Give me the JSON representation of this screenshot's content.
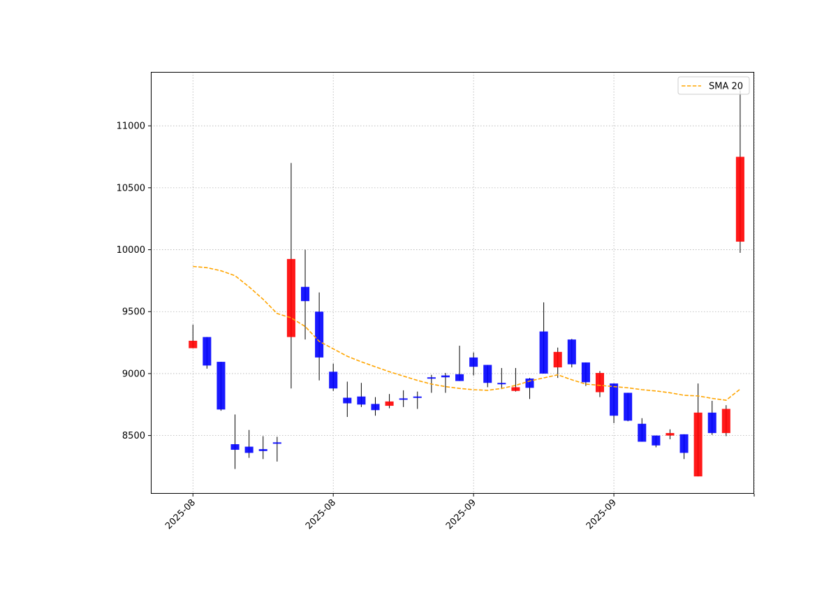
{
  "chart_data": {
    "type": "candlestick",
    "title": "",
    "xlabel": "",
    "ylabel": "",
    "ylim": [
      8030,
      11435
    ],
    "x_index_range": [
      -3,
      40
    ],
    "yticks": [
      8500,
      9000,
      9500,
      10000,
      10500,
      11000
    ],
    "xticks": [
      {
        "index": 0,
        "label": "2025-08"
      },
      {
        "index": 10,
        "label": "2025-08"
      },
      {
        "index": 20,
        "label": "2025-09"
      },
      {
        "index": 30,
        "label": "2025-09"
      },
      {
        "index": 40,
        "label": ""
      }
    ],
    "grid": true,
    "legend": {
      "position": "top-right",
      "entries": [
        {
          "name": "SMA 20",
          "color": "#FFA500",
          "style": "dashed"
        }
      ]
    },
    "colors": {
      "up": "#FF0000",
      "down": "#0000FF",
      "wick": "#000000",
      "sma": "#FFA500"
    },
    "candles": [
      {
        "i": 0,
        "open": 9205,
        "close": 9265,
        "high": 9395,
        "low": 9205
      },
      {
        "i": 1,
        "open": 9295,
        "close": 9065,
        "high": 9295,
        "low": 9040
      },
      {
        "i": 2,
        "open": 9095,
        "close": 8710,
        "high": 9095,
        "low": 8700
      },
      {
        "i": 3,
        "open": 8430,
        "close": 8385,
        "high": 8670,
        "low": 8230
      },
      {
        "i": 4,
        "open": 8410,
        "close": 8360,
        "high": 8545,
        "low": 8320
      },
      {
        "i": 5,
        "open": 8390,
        "close": 8375,
        "high": 8495,
        "low": 8310
      },
      {
        "i": 6,
        "open": 8445,
        "close": 8440,
        "high": 8490,
        "low": 8290
      },
      {
        "i": 7,
        "open": 9295,
        "close": 9925,
        "high": 10700,
        "low": 8880
      },
      {
        "i": 8,
        "open": 9700,
        "close": 9585,
        "high": 10000,
        "low": 9275
      },
      {
        "i": 9,
        "open": 9500,
        "close": 9130,
        "high": 9655,
        "low": 8945
      },
      {
        "i": 10,
        "open": 9015,
        "close": 8880,
        "high": 9080,
        "low": 8860
      },
      {
        "i": 11,
        "open": 8805,
        "close": 8760,
        "high": 8935,
        "low": 8650
      },
      {
        "i": 12,
        "open": 8815,
        "close": 8750,
        "high": 8925,
        "low": 8730
      },
      {
        "i": 13,
        "open": 8755,
        "close": 8705,
        "high": 8810,
        "low": 8660
      },
      {
        "i": 14,
        "open": 8740,
        "close": 8775,
        "high": 8835,
        "low": 8720
      },
      {
        "i": 15,
        "open": 8800,
        "close": 8790,
        "high": 8865,
        "low": 8730
      },
      {
        "i": 16,
        "open": 8815,
        "close": 8810,
        "high": 8855,
        "low": 8715
      },
      {
        "i": 17,
        "open": 8970,
        "close": 8960,
        "high": 8990,
        "low": 8845
      },
      {
        "i": 18,
        "open": 8985,
        "close": 8970,
        "high": 9005,
        "low": 8845
      },
      {
        "i": 19,
        "open": 8995,
        "close": 8940,
        "high": 9225,
        "low": 8940
      },
      {
        "i": 20,
        "open": 9130,
        "close": 9055,
        "high": 9170,
        "low": 8985
      },
      {
        "i": 21,
        "open": 9070,
        "close": 8925,
        "high": 9070,
        "low": 8890
      },
      {
        "i": 22,
        "open": 8925,
        "close": 8920,
        "high": 9045,
        "low": 8875
      },
      {
        "i": 23,
        "open": 8860,
        "close": 8890,
        "high": 9045,
        "low": 8855
      },
      {
        "i": 24,
        "open": 8960,
        "close": 8885,
        "high": 8965,
        "low": 8795
      },
      {
        "i": 25,
        "open": 9340,
        "close": 9000,
        "high": 9575,
        "low": 9000
      },
      {
        "i": 26,
        "open": 9050,
        "close": 9175,
        "high": 9210,
        "low": 8965
      },
      {
        "i": 27,
        "open": 9275,
        "close": 9075,
        "high": 9280,
        "low": 9050
      },
      {
        "i": 28,
        "open": 9090,
        "close": 8930,
        "high": 9090,
        "low": 8900
      },
      {
        "i": 29,
        "open": 8850,
        "close": 9005,
        "high": 9020,
        "low": 8810
      },
      {
        "i": 30,
        "open": 8920,
        "close": 8660,
        "high": 8920,
        "low": 8600
      },
      {
        "i": 31,
        "open": 8845,
        "close": 8620,
        "high": 8845,
        "low": 8615
      },
      {
        "i": 32,
        "open": 8595,
        "close": 8450,
        "high": 8640,
        "low": 8450
      },
      {
        "i": 33,
        "open": 8500,
        "close": 8420,
        "high": 8500,
        "low": 8405
      },
      {
        "i": 34,
        "open": 8500,
        "close": 8520,
        "high": 8550,
        "low": 8470
      },
      {
        "i": 35,
        "open": 8510,
        "close": 8360,
        "high": 8510,
        "low": 8310
      },
      {
        "i": 36,
        "open": 8170,
        "close": 8685,
        "high": 8920,
        "low": 8170
      },
      {
        "i": 37,
        "open": 8685,
        "close": 8520,
        "high": 8780,
        "low": 8505
      },
      {
        "i": 38,
        "open": 8520,
        "close": 8715,
        "high": 8745,
        "low": 8495
      },
      {
        "i": 39,
        "open": 10065,
        "close": 10750,
        "high": 11285,
        "low": 9975
      }
    ],
    "series": [
      {
        "name": "SMA 20",
        "x": [
          0,
          1,
          2,
          3,
          4,
          5,
          6,
          7,
          8,
          9,
          10,
          11,
          12,
          13,
          14,
          15,
          16,
          17,
          18,
          19,
          20,
          21,
          22,
          23,
          24,
          25,
          26,
          27,
          28,
          29,
          30,
          31,
          32,
          33,
          34,
          35,
          36,
          37,
          38,
          39
        ],
        "values": [
          9865,
          9855,
          9830,
          9790,
          9700,
          9600,
          9485,
          9450,
          9380,
          9260,
          9200,
          9140,
          9095,
          9055,
          9015,
          8980,
          8945,
          8915,
          8895,
          8880,
          8870,
          8865,
          8880,
          8905,
          8940,
          8965,
          8990,
          8950,
          8915,
          8905,
          8895,
          8885,
          8870,
          8860,
          8845,
          8825,
          8820,
          8800,
          8785,
          8875
        ]
      }
    ]
  }
}
